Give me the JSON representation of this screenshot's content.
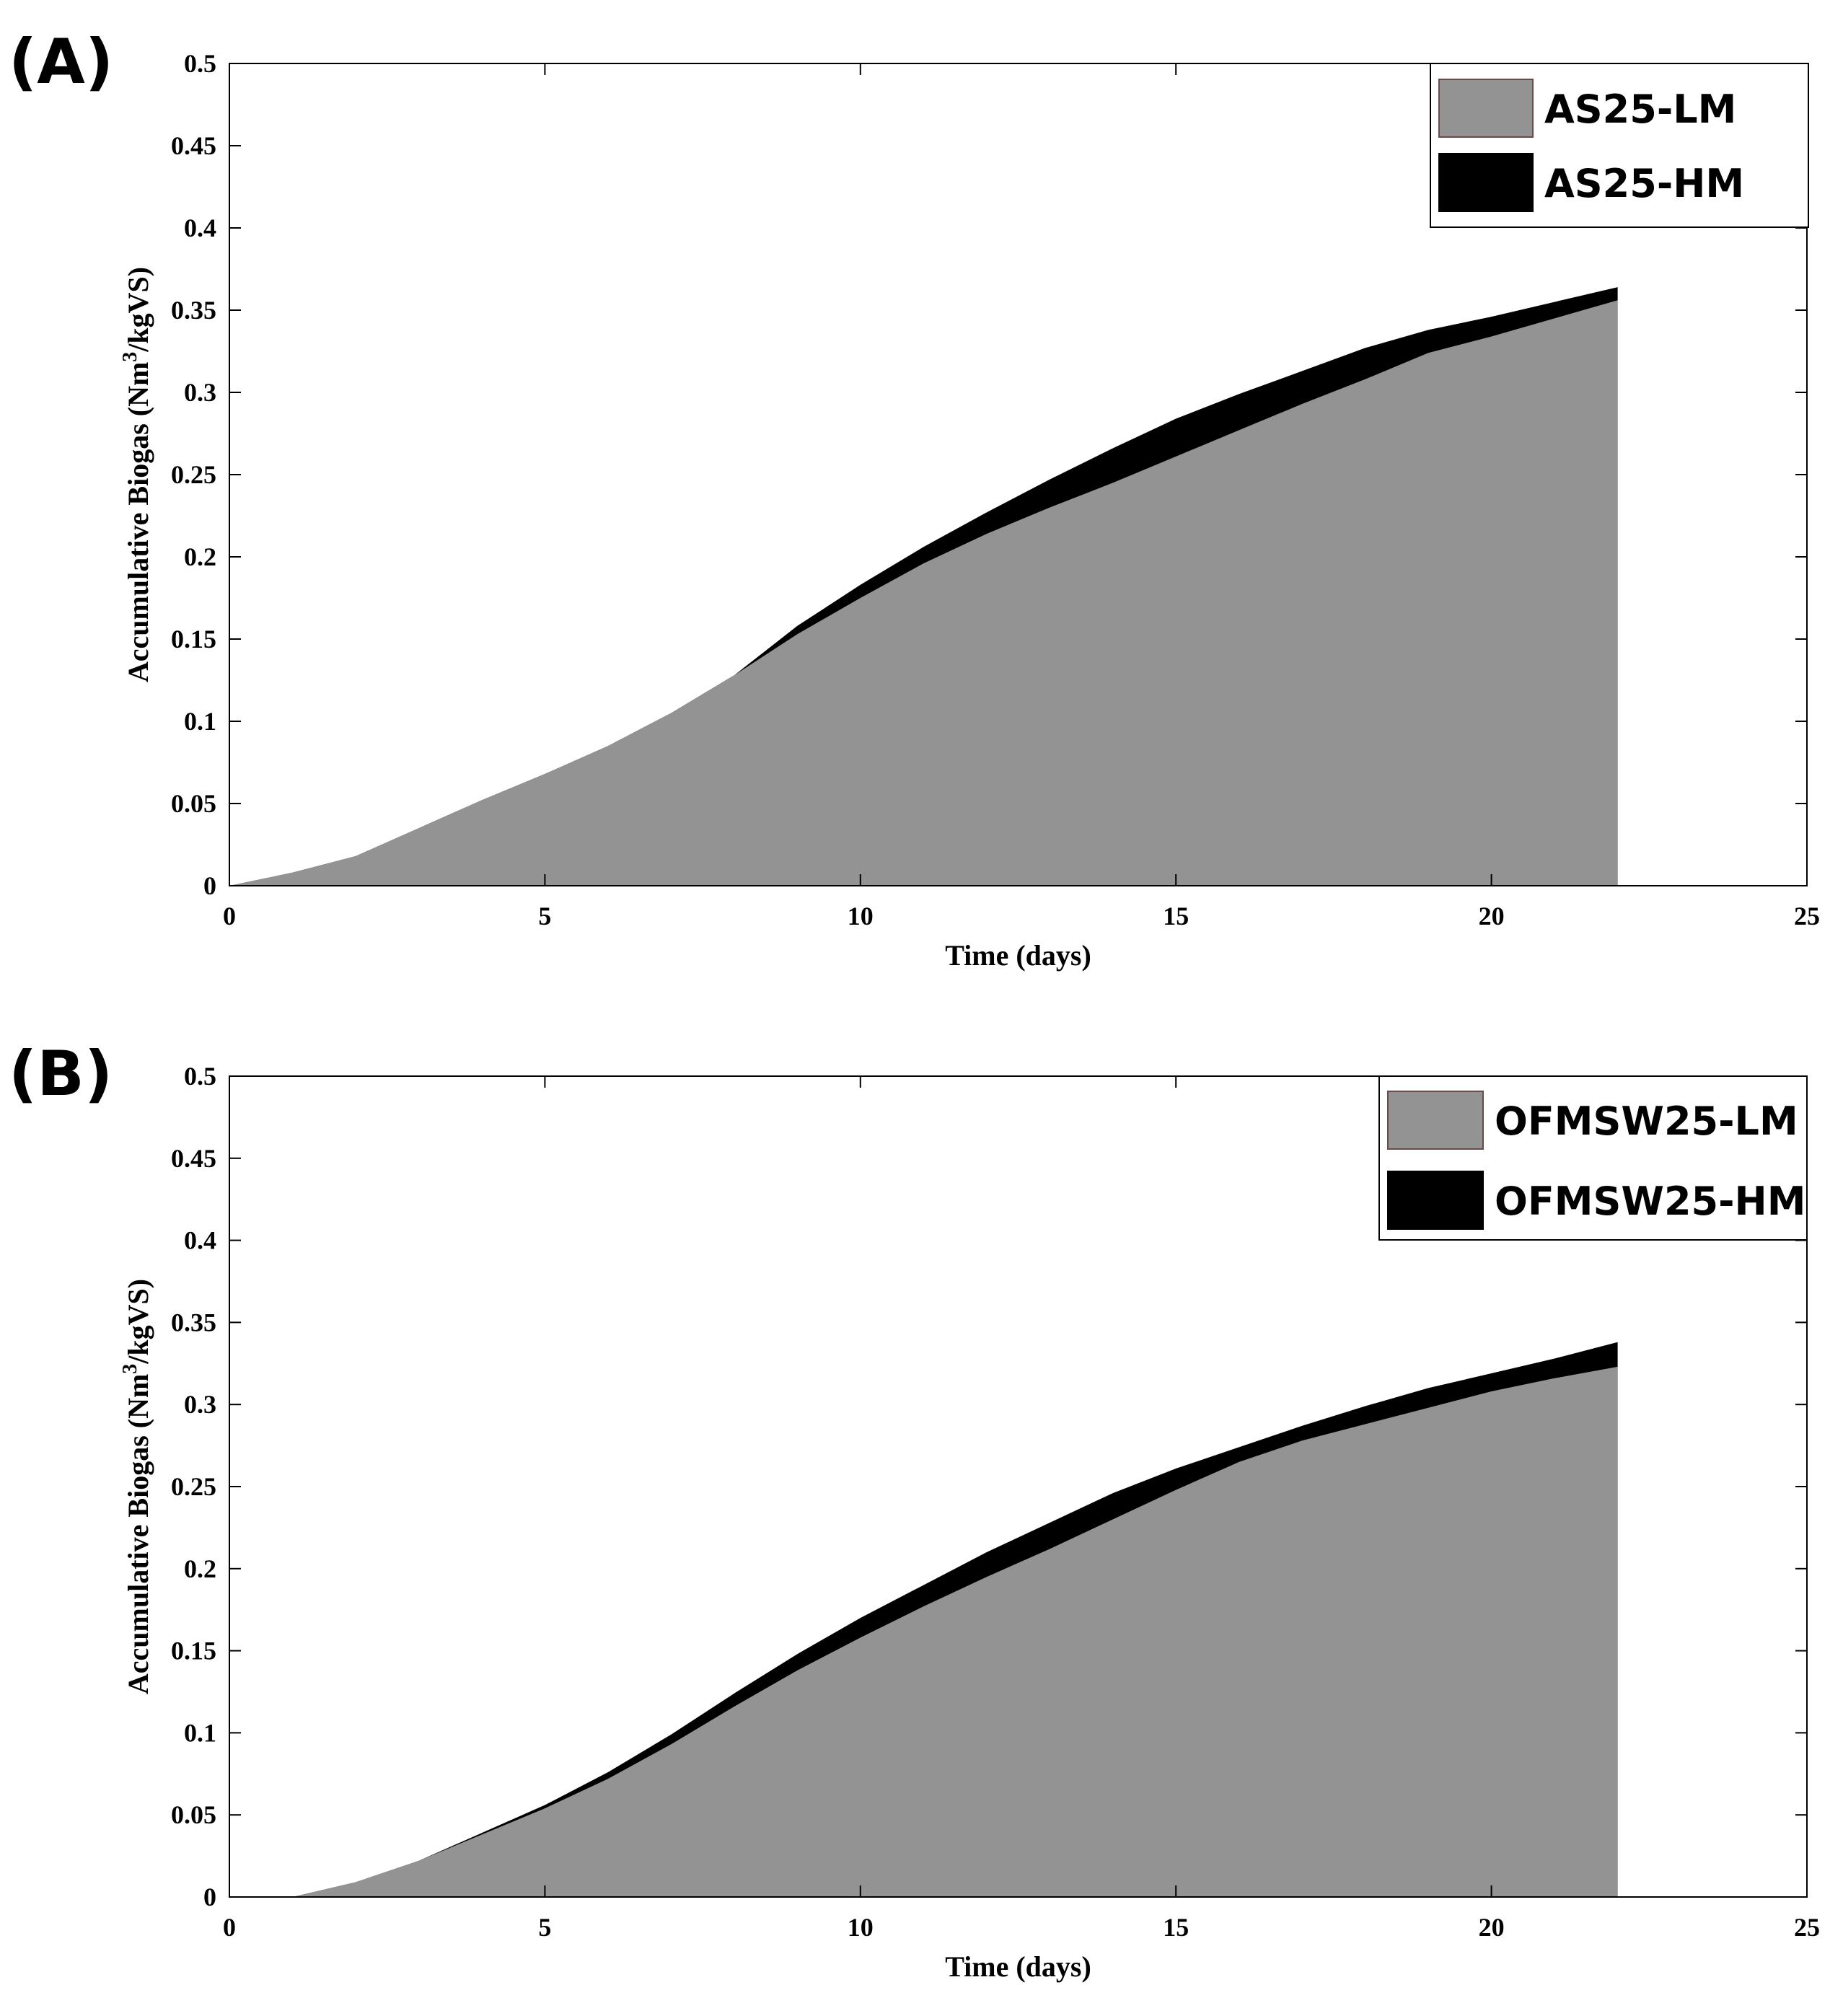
{
  "figure": {
    "colors": {
      "lm": "#939393",
      "hm": "#000000",
      "axis": "#000000",
      "background": "#ffffff"
    }
  },
  "chart_data": [
    {
      "type": "area",
      "panel_label": "(A)",
      "xlabel": "Time (days)",
      "ylabel_main": "Accumulative Biogas  (Nm",
      "ylabel_sup": "3",
      "ylabel_tail": "/kgVS)",
      "xlim": [
        0,
        25
      ],
      "ylim": [
        0,
        0.5
      ],
      "xticks": [
        0,
        5,
        10,
        15,
        20,
        25
      ],
      "yticks": [
        0,
        0.05,
        0.1,
        0.15,
        0.2,
        0.25,
        0.3,
        0.35,
        0.4,
        0.45,
        0.5
      ],
      "xtick_labels": [
        "0",
        "5",
        "10",
        "15",
        "20",
        "25"
      ],
      "ytick_labels": [
        "0",
        "0.05",
        "0.1",
        "0.15",
        "0.2",
        "0.25",
        "0.3",
        "0.35",
        "0.4",
        "0.45",
        "0.5"
      ],
      "legend_position": "top-right",
      "series": [
        {
          "name": "AS25-LM",
          "color": "#939393",
          "x": [
            0,
            1,
            2,
            3,
            4,
            5,
            6,
            7,
            8,
            9,
            10,
            11,
            12,
            13,
            14,
            15,
            16,
            17,
            18,
            19,
            20,
            21,
            22
          ],
          "values": [
            0,
            0.008,
            0.018,
            0.035,
            0.052,
            0.068,
            0.085,
            0.105,
            0.128,
            0.153,
            0.175,
            0.196,
            0.214,
            0.23,
            0.245,
            0.261,
            0.277,
            0.293,
            0.308,
            0.324,
            0.334,
            0.345,
            0.356
          ]
        },
        {
          "name": "AS25-HM",
          "color": "#000000",
          "x": [
            0,
            1,
            2,
            3,
            4,
            5,
            6,
            7,
            8,
            9,
            10,
            11,
            12,
            13,
            14,
            15,
            16,
            17,
            18,
            19,
            20,
            21,
            22
          ],
          "values": [
            0,
            0.008,
            0.018,
            0.035,
            0.052,
            0.068,
            0.085,
            0.105,
            0.128,
            0.158,
            0.183,
            0.206,
            0.227,
            0.247,
            0.266,
            0.284,
            0.299,
            0.313,
            0.327,
            0.338,
            0.346,
            0.355,
            0.364
          ]
        }
      ]
    },
    {
      "type": "area",
      "panel_label": "(B)",
      "xlabel": "Time (days)",
      "ylabel_main": "Accumulative Biogas  (Nm",
      "ylabel_sup": "3",
      "ylabel_tail": "/kgVS)",
      "xlim": [
        0,
        25
      ],
      "ylim": [
        0,
        0.5
      ],
      "xticks": [
        0,
        5,
        10,
        15,
        20,
        25
      ],
      "yticks": [
        0,
        0.05,
        0.1,
        0.15,
        0.2,
        0.25,
        0.3,
        0.35,
        0.4,
        0.45,
        0.5
      ],
      "xtick_labels": [
        "0",
        "5",
        "10",
        "15",
        "20",
        "25"
      ],
      "ytick_labels": [
        "0",
        "0.05",
        "0.1",
        "0.15",
        "0.2",
        "0.25",
        "0.3",
        "0.35",
        "0.4",
        "0.45",
        "0.5"
      ],
      "legend_position": "top-right",
      "series": [
        {
          "name": "OFMSW25-LM",
          "color": "#939393",
          "x": [
            1,
            2,
            3,
            4,
            5,
            6,
            7,
            8,
            9,
            10,
            11,
            12,
            13,
            14,
            15,
            16,
            17,
            18,
            19,
            20,
            21,
            22
          ],
          "values": [
            0,
            0.009,
            0.022,
            0.038,
            0.054,
            0.072,
            0.093,
            0.116,
            0.138,
            0.158,
            0.177,
            0.195,
            0.212,
            0.23,
            0.248,
            0.265,
            0.278,
            0.288,
            0.298,
            0.308,
            0.316,
            0.323
          ]
        },
        {
          "name": "OFMSW25-HM",
          "color": "#000000",
          "x": [
            1,
            2,
            3,
            4,
            5,
            6,
            7,
            8,
            9,
            10,
            11,
            12,
            13,
            14,
            15,
            16,
            17,
            18,
            19,
            20,
            21,
            22
          ],
          "values": [
            0,
            0.009,
            0.022,
            0.039,
            0.056,
            0.076,
            0.099,
            0.124,
            0.148,
            0.17,
            0.19,
            0.21,
            0.228,
            0.246,
            0.261,
            0.274,
            0.287,
            0.299,
            0.31,
            0.319,
            0.328,
            0.338
          ]
        }
      ]
    }
  ]
}
